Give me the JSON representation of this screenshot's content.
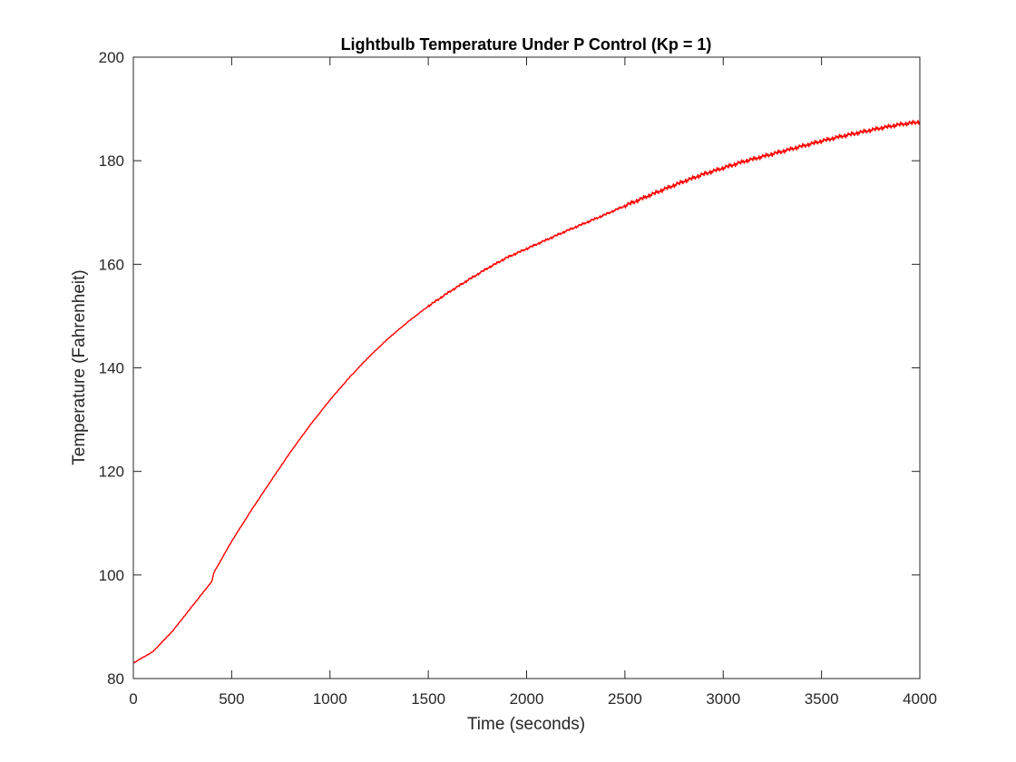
{
  "chart_data": {
    "type": "line",
    "title": "Lightbulb Temperature Under P Control (Kp = 1)",
    "xlabel": "Time (seconds)",
    "ylabel": "Temperature (Fahrenheit)",
    "xlim": [
      0,
      4000
    ],
    "ylim": [
      80,
      200
    ],
    "x_ticks": [
      0,
      500,
      1000,
      1500,
      2000,
      2500,
      3000,
      3500,
      4000
    ],
    "y_ticks": [
      80,
      100,
      120,
      140,
      160,
      180,
      200
    ],
    "x_tick_labels": [
      "0",
      "500",
      "1000",
      "1500",
      "2000",
      "2500",
      "3000",
      "3500",
      "4000"
    ],
    "y_tick_labels": [
      "80",
      "100",
      "120",
      "140",
      "160",
      "180",
      "200"
    ],
    "grid": false,
    "box": true,
    "series": [
      {
        "color": "#ff0000",
        "x": [
          0,
          100,
          200,
          300,
          400,
          410,
          500,
          600,
          700,
          800,
          900,
          1000,
          1100,
          1200,
          1300,
          1400,
          1500,
          1600,
          1700,
          1800,
          1900,
          2000,
          2100,
          2200,
          2300,
          2400,
          2500,
          2600,
          2700,
          2800,
          2900,
          3000,
          3100,
          3200,
          3300,
          3400,
          3500,
          3600,
          3700,
          3800,
          3900,
          4000
        ],
        "y": [
          83,
          85.2,
          89.2,
          94.0,
          98.8,
          100.5,
          106.5,
          112.5,
          118.2,
          123.8,
          129.0,
          133.8,
          138.2,
          142.2,
          145.8,
          149.0,
          151.9,
          154.5,
          156.9,
          159.2,
          161.3,
          163.0,
          164.7,
          166.4,
          168.0,
          169.6,
          171.3,
          172.9,
          174.5,
          176.0,
          177.4,
          178.6,
          179.8,
          180.8,
          181.8,
          182.8,
          183.8,
          184.7,
          185.5,
          186.3,
          187.0,
          187.5
        ]
      }
    ]
  }
}
